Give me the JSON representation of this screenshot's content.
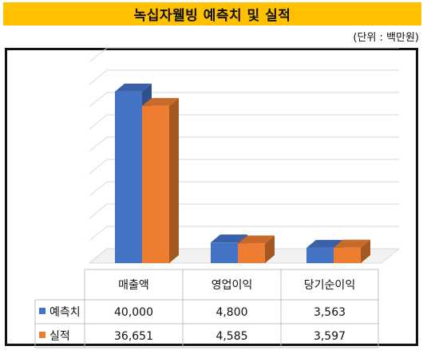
{
  "title": "녹십자웰빙 예측치 및 실적",
  "unit_note": "(단위 : 백만원)",
  "colors": {
    "forecast": "#4472c4",
    "actual": "#ed7d31",
    "title_bg": "#ffc000"
  },
  "chart_data": {
    "type": "bar",
    "categories": [
      "매출액",
      "영업이익",
      "당기순이익"
    ],
    "series": [
      {
        "name": "예측치",
        "values": [
          40000,
          4800,
          3563
        ],
        "labels": [
          "40,000",
          "4,800",
          "3,563"
        ],
        "color": "#4472c4"
      },
      {
        "name": "실적",
        "values": [
          36651,
          4585,
          3597
        ],
        "labels": [
          "36,651",
          "4,585",
          "3,597"
        ],
        "color": "#ed7d31"
      }
    ],
    "ylim": [
      0,
      45000
    ],
    "grid": true,
    "legend": "data-table"
  }
}
